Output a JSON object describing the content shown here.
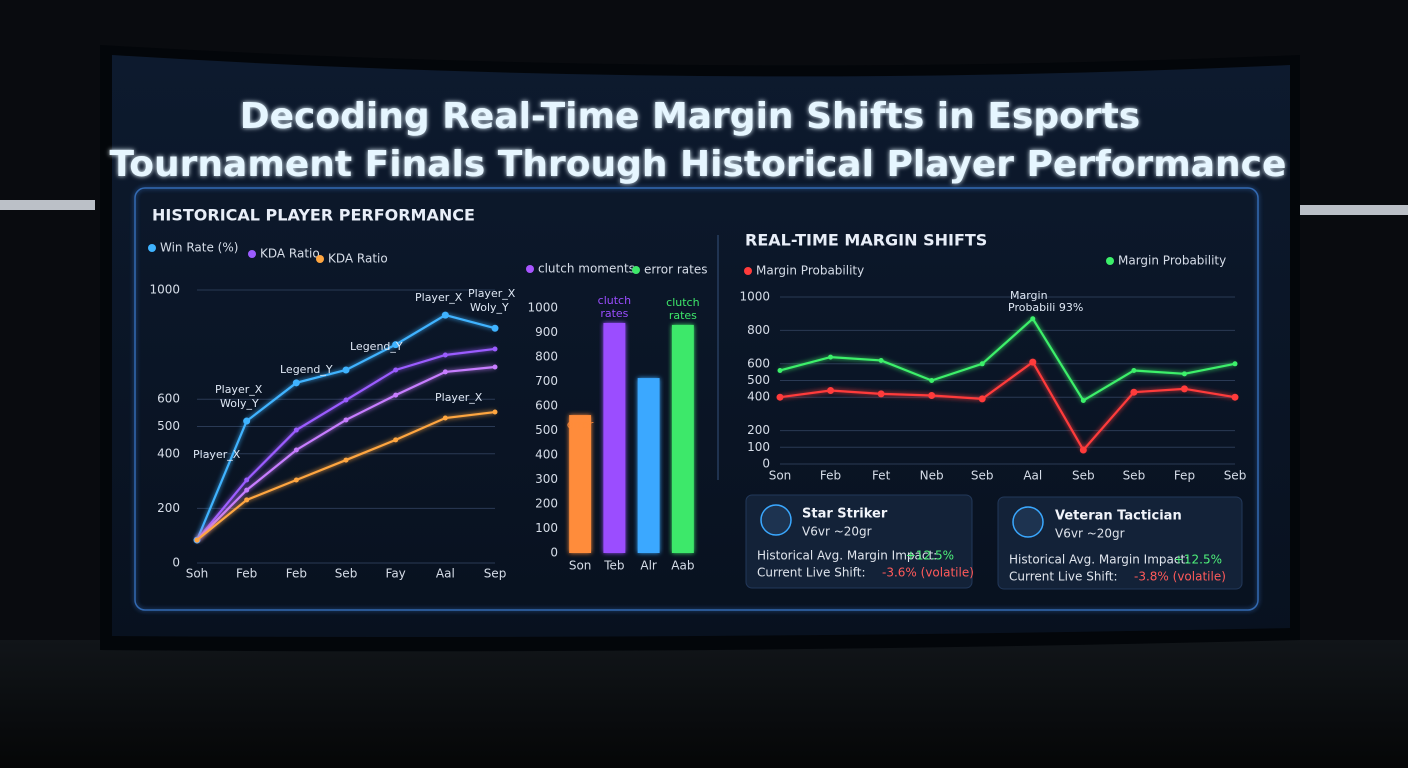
{
  "title": [
    "Decoding Real-Time Margin Shifts in Esports",
    "Tournament Finals Through Historical Player Performance"
  ],
  "chart_data": [
    {
      "type": "line",
      "title": "HISTORICAL PLAYER PERFORMANCE",
      "categories": [
        "Soh",
        "Feb",
        "Feb",
        "Seb",
        "Fay",
        "Aal",
        "Sep"
      ],
      "series": [
        {
          "name": "Win Rate (%)",
          "color": "#3fb3ff",
          "values": [
            84,
            520,
            660,
            707,
            800,
            908,
            860
          ]
        },
        {
          "name": "KDA Ratio",
          "color": "#9b5cff",
          "values": [
            84,
            304,
            487,
            597,
            707,
            762,
            784
          ]
        },
        {
          "color": "#c77dff",
          "values": [
            84,
            267,
            414,
            524,
            615,
            700,
            718
          ]
        },
        {
          "name": "KDA Ratio",
          "color": "#ffa640",
          "values": [
            84,
            231,
            304,
            377,
            451,
            531,
            553
          ]
        }
      ],
      "annotations": [
        "Player_X",
        "Player_X",
        "Woly_Y",
        "Legend_Y",
        "Legend_Y",
        "Player_X",
        "Player_X",
        "Woly_Y",
        "Player_X"
      ],
      "ylim": [
        0,
        1000
      ],
      "yticks": [
        0,
        200,
        400,
        500,
        600,
        1000
      ],
      "grid": true
    },
    {
      "type": "bar",
      "categories": [
        "Son",
        "Teb",
        "Alr",
        "Aab"
      ],
      "values": [
        563,
        939,
        714,
        931
      ],
      "colors": [
        "#ff8c3a",
        "#9b4dff",
        "#3aa8ff",
        "#3ee86a"
      ],
      "bar_labels": [
        [
          "error"
        ],
        [
          "clutch",
          "rates"
        ],
        [],
        [
          "clutch",
          "rates"
        ]
      ],
      "legend": [
        {
          "name": "clutch moments",
          "color": "#a855ff"
        },
        {
          "name": "error rates",
          "color": "#3ee86a"
        }
      ],
      "ylim": [
        0,
        1000
      ],
      "yticks": [
        0,
        100,
        200,
        300,
        400,
        500,
        600,
        700,
        800,
        900,
        1000
      ],
      "grid": false
    },
    {
      "type": "line",
      "title": "REAL-TIME MARGIN SHIFTS",
      "categories": [
        "Son",
        "Feb",
        "Fet",
        "Neb",
        "Seb",
        "Aal",
        "Seb",
        "Seb",
        "Fep",
        "Seb"
      ],
      "series": [
        {
          "name": "Margin Probability",
          "color": "#ff3b3b",
          "values": [
            400,
            440,
            420,
            410,
            390,
            610,
            84,
            430,
            450,
            400
          ]
        },
        {
          "name": "Margin Probability",
          "color": "#3cf06a",
          "values": [
            560,
            640,
            620,
            500,
            600,
            870,
            380,
            560,
            540,
            600
          ]
        }
      ],
      "annotations": [
        "Margin",
        "Probabili 93%"
      ],
      "ylim": [
        0,
        1000
      ],
      "yticks": [
        0,
        100,
        200,
        400,
        500,
        600,
        800,
        1000
      ],
      "grid": true
    }
  ],
  "cards": [
    {
      "name": "Star Striker",
      "meta": "V6vr ~20gr",
      "impact_label": "Historical Avg. Margin Impact:",
      "impact": "+12.5%",
      "shift_label": "Current Live Shift:",
      "shift": "-3.6% (volatile)"
    },
    {
      "name": "Veteran Tactician",
      "meta": "V6vr ~20gr",
      "impact_label": "Historical Avg. Margin Impact:",
      "impact": "+12.5%",
      "shift_label": "Current Live Shift:",
      "shift": "-3.8% (volatile)"
    }
  ]
}
